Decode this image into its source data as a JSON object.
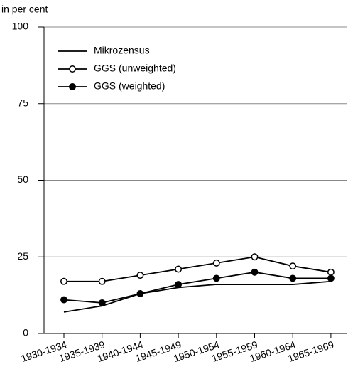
{
  "chart_data": {
    "type": "line",
    "y_label": "in per cent",
    "categories": [
      "1930-1934",
      "1935-1939",
      "1940-1944",
      "1945-1949",
      "1950-1954",
      "1955-1959",
      "1960-1964",
      "1965-1969"
    ],
    "series": [
      {
        "name": "Mikrozensus",
        "color": "#000000",
        "marker": "none",
        "values": [
          7,
          9,
          13,
          15,
          16,
          16,
          16,
          17
        ]
      },
      {
        "name": "GGS (unweighted)",
        "color": "#000000",
        "marker": "open",
        "values": [
          17,
          17,
          19,
          21,
          23,
          25,
          22,
          20
        ]
      },
      {
        "name": "GGS (weighted)",
        "color": "#000000",
        "marker": "filled",
        "values": [
          11,
          10,
          13,
          16,
          18,
          20,
          18,
          18
        ]
      }
    ],
    "ylim": [
      0,
      100
    ],
    "yticks": [
      0,
      25,
      50,
      75,
      100
    ],
    "grid": true,
    "legend": "upper left"
  }
}
